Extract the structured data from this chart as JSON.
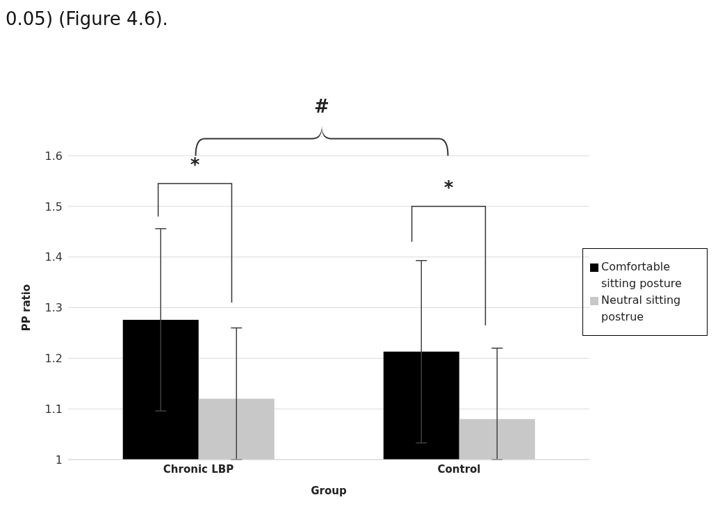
{
  "chart_data": {
    "type": "bar",
    "xlabel": "Group",
    "ylabel": "PP ratio",
    "categories": [
      "Chronic LBP",
      "Control"
    ],
    "series": [
      {
        "name": "Comfortable sitting posture",
        "color": "#000000",
        "values": [
          1.276,
          1.213
        ],
        "errors": [
          0.18,
          0.18
        ]
      },
      {
        "name": "Neutral sitting postrue",
        "color": "#c8c8c8",
        "values": [
          1.12,
          1.08
        ],
        "errors": [
          [
            1.0,
            1.26
          ],
          [
            1.0,
            1.22
          ]
        ]
      }
    ],
    "ylim": [
      1,
      1.6
    ],
    "yticks": [
      1,
      1.1,
      1.2,
      1.3,
      1.4,
      1.5,
      1.6
    ],
    "grid": "y",
    "legend": "right",
    "annotations": [
      "0.05) (Figure 4.6).",
      "*",
      "*",
      "#"
    ]
  }
}
